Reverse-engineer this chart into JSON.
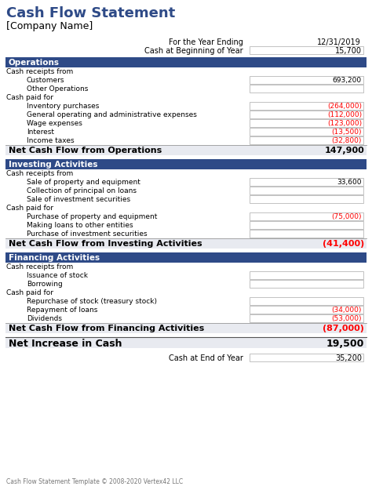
{
  "title": "Cash Flow Statement",
  "company": "[Company Name]",
  "header_label1": "For the Year Ending",
  "header_label2": "Cash at Beginning of Year",
  "header_value1": "12/31/2019",
  "header_value2": "15,700",
  "sections": [
    {
      "name": "Operations",
      "rows": [
        {
          "label": "Cash receipts from",
          "indent": 0,
          "value": null,
          "color": "black",
          "box": false
        },
        {
          "label": "Customers",
          "indent": 2,
          "value": "693,200",
          "color": "black",
          "box": true
        },
        {
          "label": "Other Operations",
          "indent": 2,
          "value": "",
          "color": "black",
          "box": true
        },
        {
          "label": "Cash paid for",
          "indent": 0,
          "value": null,
          "color": "black",
          "box": false
        },
        {
          "label": "Inventory purchases",
          "indent": 2,
          "value": "(264,000)",
          "color": "red",
          "box": true
        },
        {
          "label": "General operating and administrative expenses",
          "indent": 2,
          "value": "(112,000)",
          "color": "red",
          "box": true
        },
        {
          "label": "Wage expenses",
          "indent": 2,
          "value": "(123,000)",
          "color": "red",
          "box": true
        },
        {
          "label": "Interest",
          "indent": 2,
          "value": "(13,500)",
          "color": "red",
          "box": true
        },
        {
          "label": "Income taxes",
          "indent": 2,
          "value": "(32,800)",
          "color": "red",
          "box": true
        }
      ],
      "net_label": "Net Cash Flow from Operations",
      "net_value": "147,900",
      "net_color": "black"
    },
    {
      "name": "Investing Activities",
      "rows": [
        {
          "label": "Cash receipts from",
          "indent": 0,
          "value": null,
          "color": "black",
          "box": false
        },
        {
          "label": "Sale of property and equipment",
          "indent": 2,
          "value": "33,600",
          "color": "black",
          "box": true
        },
        {
          "label": "Collection of principal on loans",
          "indent": 2,
          "value": "",
          "color": "black",
          "box": true
        },
        {
          "label": "Sale of investment securities",
          "indent": 2,
          "value": "",
          "color": "black",
          "box": true
        },
        {
          "label": "Cash paid for",
          "indent": 0,
          "value": null,
          "color": "black",
          "box": false
        },
        {
          "label": "Purchase of property and equipment",
          "indent": 2,
          "value": "(75,000)",
          "color": "red",
          "box": true
        },
        {
          "label": "Making loans to other entities",
          "indent": 2,
          "value": "",
          "color": "black",
          "box": true
        },
        {
          "label": "Purchase of investment securities",
          "indent": 2,
          "value": "",
          "color": "black",
          "box": true
        }
      ],
      "net_label": "Net Cash Flow from Investing Activities",
      "net_value": "(41,400)",
      "net_color": "red"
    },
    {
      "name": "Financing Activities",
      "rows": [
        {
          "label": "Cash receipts from",
          "indent": 0,
          "value": null,
          "color": "black",
          "box": false
        },
        {
          "label": "Issuance of stock",
          "indent": 2,
          "value": "",
          "color": "black",
          "box": true
        },
        {
          "label": "Borrowing",
          "indent": 2,
          "value": "",
          "color": "black",
          "box": true
        },
        {
          "label": "Cash paid for",
          "indent": 0,
          "value": null,
          "color": "black",
          "box": false
        },
        {
          "label": "Repurchase of stock (treasury stock)",
          "indent": 2,
          "value": "",
          "color": "black",
          "box": true
        },
        {
          "label": "Repayment of loans",
          "indent": 2,
          "value": "(34,000)",
          "color": "red",
          "box": true
        },
        {
          "label": "Dividends",
          "indent": 2,
          "value": "(53,000)",
          "color": "red",
          "box": true
        }
      ],
      "net_label": "Net Cash Flow from Financing Activities",
      "net_value": "(87,000)",
      "net_color": "red"
    }
  ],
  "net_increase_label": "Net Increase in Cash",
  "net_increase_value": "19,500",
  "net_increase_color": "black",
  "footer_label": "Cash at End of Year",
  "footer_value": "35,200",
  "copyright": "Cash Flow Statement Template © 2008-2020 Vertex42 LLC",
  "header_bg": "#2E4A87",
  "header_text": "#FFFFFF",
  "net_row_bg": "#E8EAF0",
  "title_color": "#2E4A87",
  "box_border": "#AAAAAA",
  "title_fontsize": 13,
  "company_fontsize": 9,
  "header_fontsize": 7,
  "section_header_fontsize": 7.5,
  "row_fontsize": 6.5,
  "net_fontsize": 8,
  "net_increase_fontsize": 9,
  "copyright_fontsize": 5.5
}
